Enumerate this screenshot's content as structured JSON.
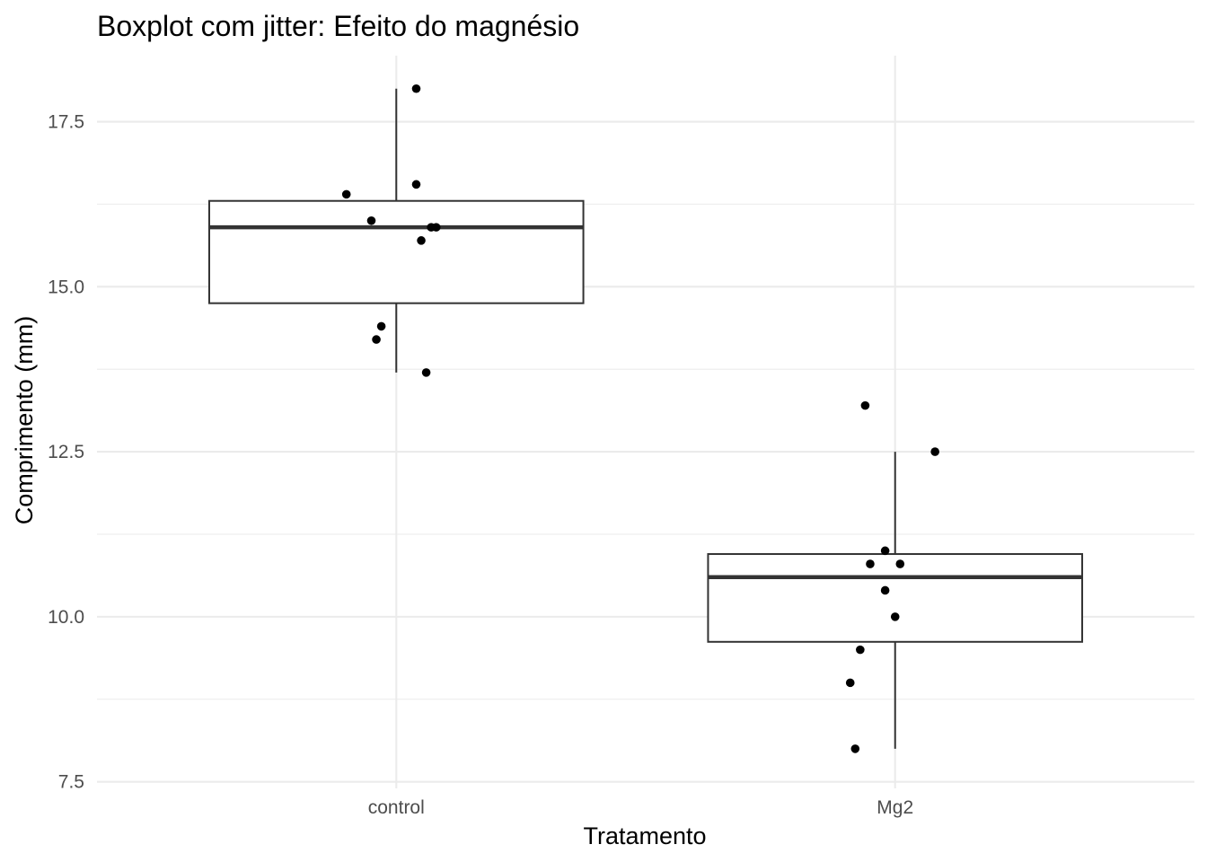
{
  "chart_data": {
    "type": "boxplot",
    "title": "Boxplot com jitter: Efeito do magnésio",
    "xlabel": "Tratamento",
    "ylabel": "Comprimento (mm)",
    "ylim": [
      7.4,
      18.5
    ],
    "yticks": [
      7.5,
      10.0,
      12.5,
      15.0,
      17.5
    ],
    "ytick_labels": [
      "7.5",
      "10.0",
      "12.5",
      "15.0",
      "17.5"
    ],
    "grid": true,
    "categories": [
      "control",
      "Mg2"
    ],
    "boxes": [
      {
        "category": "control",
        "whisker_low": 13.7,
        "q1": 14.75,
        "median": 15.9,
        "q3": 16.3,
        "whisker_high": 18.0
      },
      {
        "category": "Mg2",
        "whisker_low": 8.0,
        "q1": 9.62,
        "median": 10.6,
        "q3": 10.95,
        "whisker_high": 12.5
      }
    ],
    "points": [
      {
        "category": "control",
        "jitter": 0.04,
        "y": 18.0
      },
      {
        "category": "control",
        "jitter": 0.04,
        "y": 16.55
      },
      {
        "category": "control",
        "jitter": -0.1,
        "y": 16.4
      },
      {
        "category": "control",
        "jitter": -0.05,
        "y": 16.0
      },
      {
        "category": "control",
        "jitter": 0.07,
        "y": 15.9
      },
      {
        "category": "control",
        "jitter": 0.08,
        "y": 15.9
      },
      {
        "category": "control",
        "jitter": 0.05,
        "y": 15.7
      },
      {
        "category": "control",
        "jitter": -0.03,
        "y": 14.4
      },
      {
        "category": "control",
        "jitter": -0.04,
        "y": 14.2
      },
      {
        "category": "control",
        "jitter": 0.06,
        "y": 13.7
      },
      {
        "category": "Mg2",
        "jitter": -0.06,
        "y": 13.2
      },
      {
        "category": "Mg2",
        "jitter": 0.08,
        "y": 12.5
      },
      {
        "category": "Mg2",
        "jitter": -0.02,
        "y": 11.0
      },
      {
        "category": "Mg2",
        "jitter": -0.05,
        "y": 10.8
      },
      {
        "category": "Mg2",
        "jitter": 0.01,
        "y": 10.8
      },
      {
        "category": "Mg2",
        "jitter": -0.02,
        "y": 10.4
      },
      {
        "category": "Mg2",
        "jitter": 0.0,
        "y": 10.0
      },
      {
        "category": "Mg2",
        "jitter": -0.07,
        "y": 9.5
      },
      {
        "category": "Mg2",
        "jitter": -0.09,
        "y": 9.0
      },
      {
        "category": "Mg2",
        "jitter": -0.08,
        "y": 8.0
      }
    ]
  }
}
